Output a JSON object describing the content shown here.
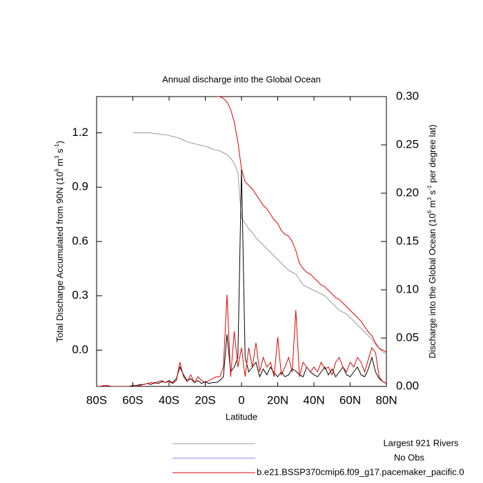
{
  "chart_data": {
    "type": "line",
    "title": "Annual discharge into the Global Ocean",
    "xlabel": "Latitude",
    "ylabel": [
      "Total Discharge Accumulated from 90N (10",
      "6",
      " m",
      "3",
      " s",
      "-1",
      ")"
    ],
    "y2label": [
      "Discharge into the Global Ocean (10",
      "6",
      " m",
      "3",
      " s",
      "-1",
      " per degree lat)"
    ],
    "x": [
      -80,
      -78,
      -76,
      -74,
      -72,
      -70,
      -68,
      -66,
      -64,
      -62,
      -60,
      -58,
      -56,
      -54,
      -52,
      -50,
      -48,
      -46,
      -44,
      -42,
      -40,
      -38,
      -36,
      -34,
      -32,
      -30,
      -28,
      -26,
      -24,
      -22,
      -20,
      -18,
      -16,
      -14,
      -12,
      -10,
      -8,
      -6,
      -4,
      -2,
      0,
      2,
      4,
      6,
      8,
      10,
      12,
      14,
      16,
      18,
      20,
      22,
      24,
      26,
      28,
      30,
      32,
      34,
      36,
      38,
      40,
      42,
      44,
      46,
      48,
      50,
      52,
      54,
      56,
      58,
      60,
      62,
      64,
      66,
      68,
      70,
      72,
      74,
      76,
      78,
      80
    ],
    "xlim": [
      -80,
      80
    ],
    "xticks": [
      {
        "value": -80,
        "label": "80S"
      },
      {
        "value": -60,
        "label": "60S"
      },
      {
        "value": -40,
        "label": "40S"
      },
      {
        "value": -20,
        "label": "20S"
      },
      0,
      {
        "value": 20,
        "label": "20N"
      },
      {
        "value": 40,
        "label": "40N"
      },
      {
        "value": 60,
        "label": "60N"
      },
      {
        "value": 80,
        "label": "80N"
      }
    ],
    "ylim": [
      -0.2,
      1.4
    ],
    "yticks": [
      {
        "value": 0,
        "label": "0.0"
      },
      0.3,
      0.6,
      0.9,
      1.2
    ],
    "y2lim": [
      0,
      0.3
    ],
    "y2ticks": [
      {
        "value": 0,
        "label": "0.00"
      },
      {
        "value": 0.05,
        "label": "0.05"
      },
      {
        "value": 0.1,
        "label": "0.10"
      },
      {
        "value": 0.15,
        "label": "0.15"
      },
      {
        "value": 0.2,
        "label": "0.20"
      },
      {
        "value": 0.25,
        "label": "0.25"
      },
      {
        "value": 0.3,
        "label": "0.30"
      }
    ],
    "series": [
      {
        "name": "Largest 921 Rivers",
        "color": "#999999",
        "values": [
          null,
          null,
          null,
          null,
          null,
          null,
          null,
          null,
          null,
          null,
          1.2,
          1.2,
          1.2,
          1.2,
          1.2,
          1.2,
          1.195,
          1.195,
          1.19,
          1.19,
          1.185,
          1.18,
          1.175,
          1.17,
          1.16,
          1.15,
          1.145,
          1.14,
          1.135,
          1.13,
          1.125,
          1.12,
          1.11,
          1.105,
          1.1,
          1.09,
          1.08,
          1.06,
          1.03,
          0.98,
          0.73,
          0.7,
          0.67,
          0.65,
          0.62,
          0.6,
          0.58,
          0.56,
          0.54,
          0.52,
          0.5,
          0.48,
          0.46,
          0.44,
          0.43,
          0.42,
          0.39,
          0.36,
          0.35,
          0.34,
          0.33,
          0.32,
          0.31,
          0.3,
          0.28,
          0.26,
          0.24,
          0.22,
          0.21,
          0.2,
          0.18,
          0.16,
          0.14,
          0.12,
          0.1,
          0.08,
          0.06,
          0.03,
          0.01,
          -0.01,
          -0.02
        ]
      },
      {
        "name": "No Obs",
        "color": "#8080ff"
      },
      {
        "name": "b.e21.BSSP370cmip6.f09_g17.pacemaker_pacific.0",
        "color": "#dd0000",
        "values": [
          null,
          null,
          null,
          null,
          null,
          null,
          null,
          null,
          null,
          null,
          null,
          null,
          null,
          null,
          null,
          null,
          null,
          null,
          null,
          null,
          null,
          null,
          null,
          null,
          null,
          null,
          null,
          null,
          null,
          null,
          null,
          null,
          null,
          1.4,
          1.4,
          1.39,
          1.37,
          1.33,
          1.26,
          1.15,
          1.0,
          0.93,
          0.91,
          0.89,
          0.86,
          0.83,
          0.8,
          0.78,
          0.75,
          0.72,
          0.7,
          0.66,
          0.64,
          0.63,
          0.6,
          0.55,
          0.48,
          0.45,
          0.43,
          0.42,
          0.4,
          0.38,
          0.36,
          0.35,
          0.33,
          0.31,
          0.29,
          0.28,
          0.26,
          0.24,
          0.22,
          0.2,
          0.18,
          0.16,
          0.13,
          0.1,
          0.08,
          0.04,
          0.01,
          0.0,
          -0.01
        ]
      },
      {
        "color": "#000000",
        "axis": "y2",
        "values": [
          0,
          0,
          0,
          0,
          0,
          0,
          0,
          0,
          0,
          0,
          0.001,
          0.001,
          0.002,
          0.002,
          0.003,
          0.002,
          0.004,
          0.003,
          0.005,
          0.004,
          0.006,
          0.004,
          0.008,
          0.02,
          0.012,
          0.006,
          0.008,
          0.004,
          0.006,
          0.003,
          0.005,
          0.003,
          0.004,
          0.004,
          0.006,
          0.01,
          0.054,
          0.015,
          0.02,
          0.03,
          0.225,
          0.03,
          0.015,
          0.02,
          0.025,
          0.01,
          0.018,
          0.012,
          0.02,
          0.014,
          0.01,
          0.015,
          0.01,
          0.012,
          0.018,
          0.016,
          0.012,
          0.01,
          0.02,
          0.015,
          0.012,
          0.01,
          0.015,
          0.02,
          0.012,
          0.018,
          0.01,
          0.015,
          0.02,
          0.012,
          0.01,
          0.015,
          0.02,
          0.012,
          0.01,
          0.018,
          0.03,
          0.015,
          0.008,
          0.005,
          0.003
        ]
      },
      {
        "color": "#dd0000",
        "axis": "y2",
        "values": [
          0,
          0,
          0.001,
          0.001,
          0,
          0,
          0,
          0,
          0,
          0,
          0,
          0,
          0.001,
          0.002,
          0.003,
          0.004,
          0.003,
          0.005,
          0.006,
          0.004,
          0.005,
          0.003,
          0.006,
          0.025,
          0.01,
          0.005,
          0.012,
          0.004,
          0.01,
          0.006,
          0.004,
          0.006,
          0.008,
          0.01,
          0.01,
          0.02,
          0.095,
          0.01,
          0.057,
          0.02,
          0.04,
          0.01,
          0.04,
          0.02,
          0.045,
          0.015,
          0.03,
          0.02,
          0.025,
          0.01,
          0.051,
          0.012,
          0.02,
          0.03,
          0.015,
          0.079,
          0.01,
          0.025,
          0.02,
          0.015,
          0.02,
          0.015,
          0.025,
          0.018,
          0.02,
          0.012,
          0.025,
          0.03,
          0.02,
          0.015,
          0.025,
          0.02,
          0.03,
          0.025,
          0.015,
          0.028,
          0.04,
          0.035,
          0.01,
          0.005,
          0.003
        ]
      }
    ]
  }
}
